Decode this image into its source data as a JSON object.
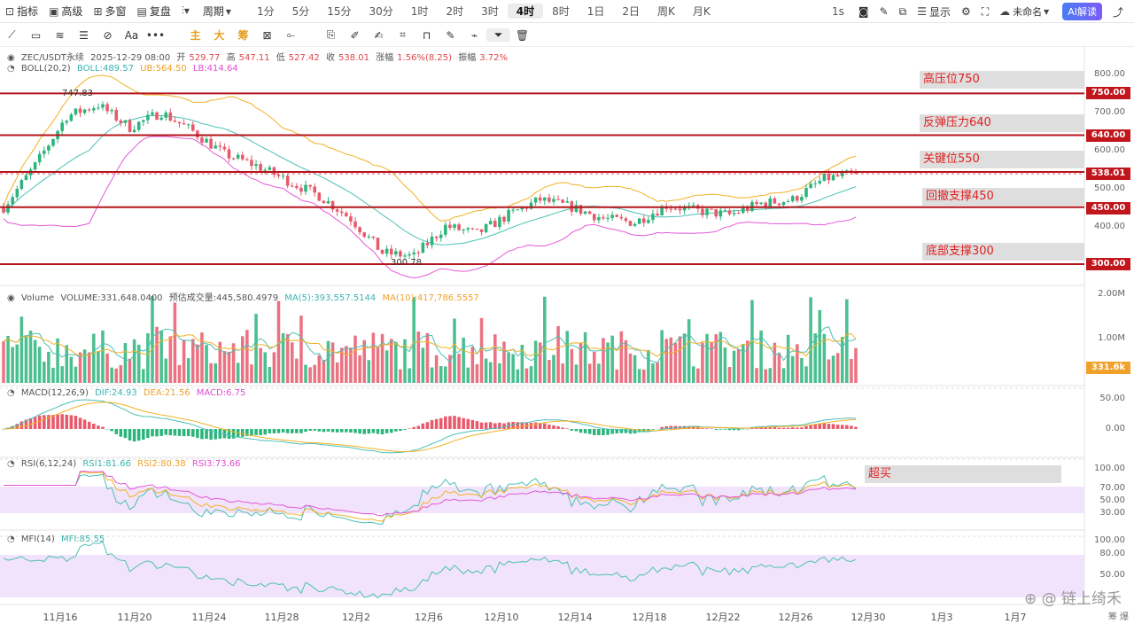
{
  "toolbar": {
    "indicators": "指标",
    "advanced": "高级",
    "multiwindow": "多窗",
    "replay": "复盘",
    "period": "周期",
    "timeframes": [
      "1分",
      "5分",
      "15分",
      "30分",
      "1时",
      "2时",
      "3时",
      "4时",
      "8时",
      "1日",
      "2日",
      "周K",
      "月K"
    ],
    "active_timeframe": "4时",
    "interval": "1s",
    "display": "显示",
    "layout_name": "未命名",
    "ai_button": "AI解读"
  },
  "drawbar": {
    "labels": [
      "主",
      "大",
      "筹"
    ]
  },
  "info": {
    "symbol": "ZEC/USDT永续",
    "datetime": "2025-12-29 08:00",
    "open_label": "开",
    "open": "529.77",
    "high_label": "高",
    "high": "547.11",
    "low_label": "低",
    "low": "527.42",
    "close_label": "收",
    "close": "538.01",
    "change_label": "涨幅",
    "change": "1.56%(8.25)",
    "amp_label": "振幅",
    "amp": "3.72%",
    "boll": "BOLL(20,2)",
    "boll_mid": "BOLL:489.57",
    "boll_ub": "UB:564.50",
    "boll_lb": "LB:414.64",
    "volume_title": "Volume",
    "volume_val": "VOLUME:331,648.0400",
    "volume_est": "预估成交量:445,580.4979",
    "vol_ma5": "MA(5):393,557.5144",
    "vol_ma10": "MA(10):417,786.5557",
    "macd_title": "MACD(12,26,9)",
    "dif": "DIF:24.93",
    "dea": "DEA:21.56",
    "macd": "MACD:6.75",
    "rsi_title": "RSI(6,12,24)",
    "rsi1": "RSI1:81.66",
    "rsi2": "RSI2:80.38",
    "rsi3": "RSI3:73.66",
    "mfi_title": "MFI(14)",
    "mfi": "MFI:85.55"
  },
  "annotations": {
    "high_pressure": "高压位750",
    "rebound_pressure": "反弹压力640",
    "key_level": "关键位550",
    "pullback_support": "回撤支撑450",
    "bottom_support": "底部支撑300",
    "overbought": "超买",
    "peak_label": "747.83",
    "trough_label": "300.78"
  },
  "price_tags": {
    "t750": "750.00",
    "t640": "640.00",
    "t538": "538.01",
    "t450": "450.00",
    "t300": "300.00",
    "vol": "331.6k"
  },
  "axes": {
    "price": [
      "800.00",
      "750.00",
      "700.00",
      "650.00",
      "600.00",
      "550.00",
      "500.00",
      "450.00",
      "400.00",
      "350.00",
      "300.00"
    ],
    "volume": [
      "2.00M",
      "1.00M"
    ],
    "macd": [
      "50.00",
      "0.00"
    ],
    "rsi": [
      "100.00",
      "70.00",
      "50.00",
      "30.00"
    ],
    "mfi": [
      "100.00",
      "80.00",
      "50.00"
    ],
    "dates": [
      "11月16",
      "11月20",
      "11月24",
      "11月28",
      "12月2",
      "12月6",
      "12月10",
      "12月14",
      "12月18",
      "12月22",
      "12月26",
      "12月30",
      "1月3",
      "1月7"
    ]
  },
  "chart_data": {
    "type": "candlestick",
    "title": "ZEC/USDT永续 4时",
    "price_levels": [
      750,
      640,
      550,
      450,
      300
    ],
    "close_path": [
      {
        "date": "11月13",
        "price": 450
      },
      {
        "date": "11月15",
        "price": 560
      },
      {
        "date": "11月16",
        "price": 690
      },
      {
        "date": "11月17",
        "price": 720
      },
      {
        "date": "11月18",
        "price": 660
      },
      {
        "date": "11月20",
        "price": 700
      },
      {
        "date": "11月22",
        "price": 650
      },
      {
        "date": "11月24",
        "price": 590
      },
      {
        "date": "11月26",
        "price": 560
      },
      {
        "date": "11月28",
        "price": 520
      },
      {
        "date": "11月30",
        "price": 480
      },
      {
        "date": "12月1",
        "price": 420
      },
      {
        "date": "12月2",
        "price": 330
      },
      {
        "date": "12月3",
        "price": 320
      },
      {
        "date": "12月5",
        "price": 400
      },
      {
        "date": "12月7",
        "price": 380
      },
      {
        "date": "12月9",
        "price": 430
      },
      {
        "date": "12月11",
        "price": 470
      },
      {
        "date": "12月14",
        "price": 450
      },
      {
        "date": "12月16",
        "price": 420
      },
      {
        "date": "12月18",
        "price": 410
      },
      {
        "date": "12月20",
        "price": 455
      },
      {
        "date": "12月22",
        "price": 440
      },
      {
        "date": "12月24",
        "price": 430
      },
      {
        "date": "12月26",
        "price": 460
      },
      {
        "date": "12月27",
        "price": 470
      },
      {
        "date": "12月28",
        "price": 525
      },
      {
        "date": "12月29",
        "price": 538
      }
    ],
    "boll": {
      "mid": 489.57,
      "ub": 564.5,
      "lb": 414.64
    },
    "volume_last": 331648.04,
    "macd_last": {
      "dif": 24.93,
      "dea": 21.56,
      "macd": 6.75
    },
    "rsi_last": {
      "rsi6": 81.66,
      "rsi12": 80.38,
      "rsi24": 73.66
    },
    "mfi_last": 85.55
  }
}
